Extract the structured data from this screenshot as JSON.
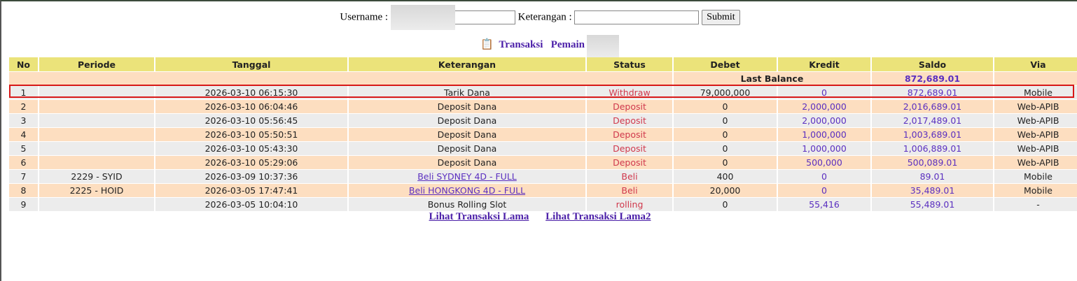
{
  "form": {
    "username_label": "Username :",
    "username_value": "",
    "keterangan_label": "Keterangan :",
    "keterangan_value": "",
    "submit_label": "Submit"
  },
  "title": {
    "icon": "clipboard-icon",
    "transaksi": "Transaksi",
    "pemain_label": "Pemain : k"
  },
  "table": {
    "headers": [
      "No",
      "Periode",
      "Tanggal",
      "Keterangan",
      "Status",
      "Debet",
      "Kredit",
      "Saldo",
      "Via"
    ],
    "last_balance_label": "Last Balance",
    "last_balance_value": "872,689.01",
    "rows": [
      {
        "no": "1",
        "periode": "",
        "tanggal": "2026-03-10 06:15:30",
        "keterangan": "Tarik Dana",
        "link": false,
        "status": "Withdraw",
        "debet": "79,000,000",
        "kredit": "0",
        "saldo": "872,689.01",
        "via": "Mobile"
      },
      {
        "no": "2",
        "periode": "",
        "tanggal": "2026-03-10 06:04:46",
        "keterangan": "Deposit Dana",
        "link": false,
        "status": "Deposit",
        "debet": "0",
        "kredit": "2,000,000",
        "saldo": "2,016,689.01",
        "via": "Web-APIB"
      },
      {
        "no": "3",
        "periode": "",
        "tanggal": "2026-03-10 05:56:45",
        "keterangan": "Deposit Dana",
        "link": false,
        "status": "Deposit",
        "debet": "0",
        "kredit": "2,000,000",
        "saldo": "2,017,489.01",
        "via": "Web-APIB"
      },
      {
        "no": "4",
        "periode": "",
        "tanggal": "2026-03-10 05:50:51",
        "keterangan": "Deposit Dana",
        "link": false,
        "status": "Deposit",
        "debet": "0",
        "kredit": "1,000,000",
        "saldo": "1,003,689.01",
        "via": "Web-APIB"
      },
      {
        "no": "5",
        "periode": "",
        "tanggal": "2026-03-10 05:43:30",
        "keterangan": "Deposit Dana",
        "link": false,
        "status": "Deposit",
        "debet": "0",
        "kredit": "1,000,000",
        "saldo": "1,006,889.01",
        "via": "Web-APIB"
      },
      {
        "no": "6",
        "periode": "",
        "tanggal": "2026-03-10 05:29:06",
        "keterangan": "Deposit Dana",
        "link": false,
        "status": "Deposit",
        "debet": "0",
        "kredit": "500,000",
        "saldo": "500,089.01",
        "via": "Web-APIB"
      },
      {
        "no": "7",
        "periode": "2229 - SYID",
        "tanggal": "2026-03-09 10:37:36",
        "keterangan": "Beli SYDNEY 4D - FULL",
        "link": true,
        "status": "Beli",
        "debet": "400",
        "kredit": "0",
        "saldo": "89.01",
        "via": "Mobile"
      },
      {
        "no": "8",
        "periode": "2225 - HOID",
        "tanggal": "2026-03-05 17:47:41",
        "keterangan": "Beli HONGKONG 4D - FULL",
        "link": true,
        "status": "Beli",
        "debet": "20,000",
        "kredit": "0",
        "saldo": "35,489.01",
        "via": "Mobile"
      },
      {
        "no": "9",
        "periode": "",
        "tanggal": "2026-03-05 10:04:10",
        "keterangan": "Bonus Rolling Slot",
        "link": false,
        "status": "rolling",
        "debet": "0",
        "kredit": "55,416",
        "saldo": "55,489.01",
        "via": "-"
      }
    ]
  },
  "links": {
    "lama": "Lihat Transaksi Lama",
    "lama2": "Lihat Transaksi Lama2"
  },
  "colors": {
    "header": "#ebe37a",
    "row_odd": "#eaeaea",
    "row_even": "#fddab9",
    "status": "#d0384c",
    "amount": "#5a2fc0",
    "highlight": "#d81818"
  }
}
